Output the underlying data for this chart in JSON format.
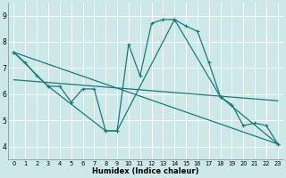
{
  "xlabel": "Humidex (Indice chaleur)",
  "background_color": "#cce8e8",
  "grid_color": "#ffffff",
  "line_color": "#1a7a7a",
  "xlim": [
    -0.5,
    23.5
  ],
  "ylim": [
    3.5,
    9.5
  ],
  "xticks": [
    0,
    1,
    2,
    3,
    4,
    5,
    6,
    7,
    8,
    9,
    10,
    11,
    12,
    13,
    14,
    15,
    16,
    17,
    18,
    19,
    20,
    21,
    22,
    23
  ],
  "yticks": [
    4,
    5,
    6,
    7,
    8,
    9
  ],
  "main_x": [
    0,
    1,
    2,
    3,
    4,
    5,
    6,
    7,
    8,
    9,
    10,
    11,
    12,
    13,
    14,
    15,
    16,
    17,
    18,
    19,
    20,
    21,
    22,
    23
  ],
  "main_y": [
    7.6,
    7.2,
    6.7,
    6.3,
    6.3,
    5.7,
    6.2,
    6.2,
    4.6,
    4.6,
    7.9,
    6.7,
    8.7,
    8.85,
    8.85,
    8.6,
    8.4,
    7.2,
    5.9,
    5.6,
    4.8,
    4.9,
    4.8,
    4.1
  ],
  "line1_x": [
    0,
    23
  ],
  "line1_y": [
    7.6,
    4.1
  ],
  "line2_x": [
    0,
    23
  ],
  "line2_y": [
    6.55,
    5.75
  ],
  "seg_x": [
    0,
    3,
    8,
    9,
    14,
    18,
    23
  ],
  "seg_y": [
    7.6,
    6.3,
    4.6,
    4.6,
    8.85,
    5.9,
    4.1
  ]
}
